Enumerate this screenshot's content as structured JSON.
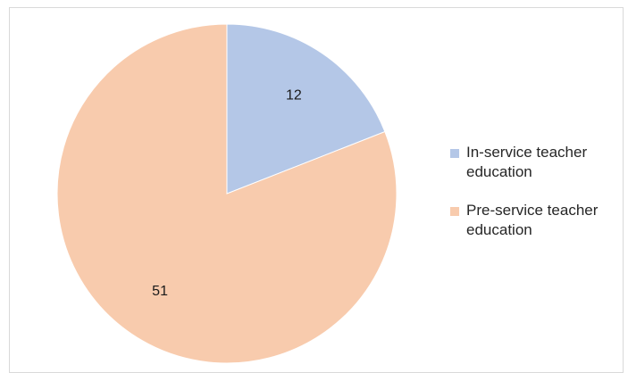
{
  "chart_data": {
    "type": "pie",
    "title": "",
    "legend_position": "right",
    "slices": [
      {
        "name": "In-service teacher education",
        "value": 12,
        "label": "12",
        "color": "#B4C7E7"
      },
      {
        "name": "Pre-service teacher education",
        "value": 51,
        "label": "51",
        "color": "#F8CBAD"
      }
    ]
  }
}
